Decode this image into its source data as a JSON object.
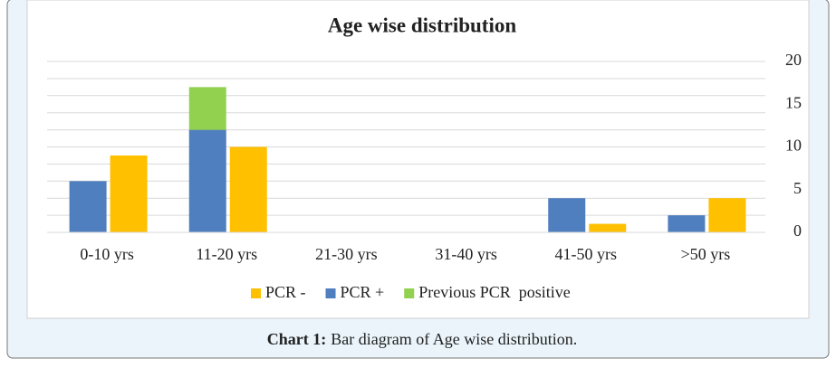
{
  "chart_data": {
    "type": "bar",
    "title": "Age wise distribution",
    "categories": [
      "0-10 yrs",
      "11-20 yrs",
      "21-30 yrs",
      "31-40 yrs",
      "41-50 yrs",
      ">50 yrs"
    ],
    "series": [
      {
        "name": "PCR -",
        "color": "#ffc000",
        "values": [
          9,
          10,
          0,
          0,
          1,
          4
        ],
        "stack": "right"
      },
      {
        "name": "PCR +",
        "color": "#4f7fbf",
        "values": [
          6,
          12,
          0,
          0,
          4,
          2
        ],
        "stack": "left"
      },
      {
        "name": "Previous PCR  positive",
        "color": "#92d050",
        "values": [
          0,
          5,
          0,
          0,
          0,
          0
        ],
        "stack": "left"
      }
    ],
    "ylim": [
      0,
      20
    ],
    "yticks": [
      0,
      5,
      10,
      15,
      20
    ],
    "ygrid": [
      0,
      2,
      4,
      6,
      8,
      10,
      12,
      14,
      16,
      18,
      20
    ],
    "y_axis_side": "right",
    "legend": "bottom"
  },
  "caption": {
    "label": "Chart 1:",
    "text": "Bar diagram of Age wise distribution."
  }
}
